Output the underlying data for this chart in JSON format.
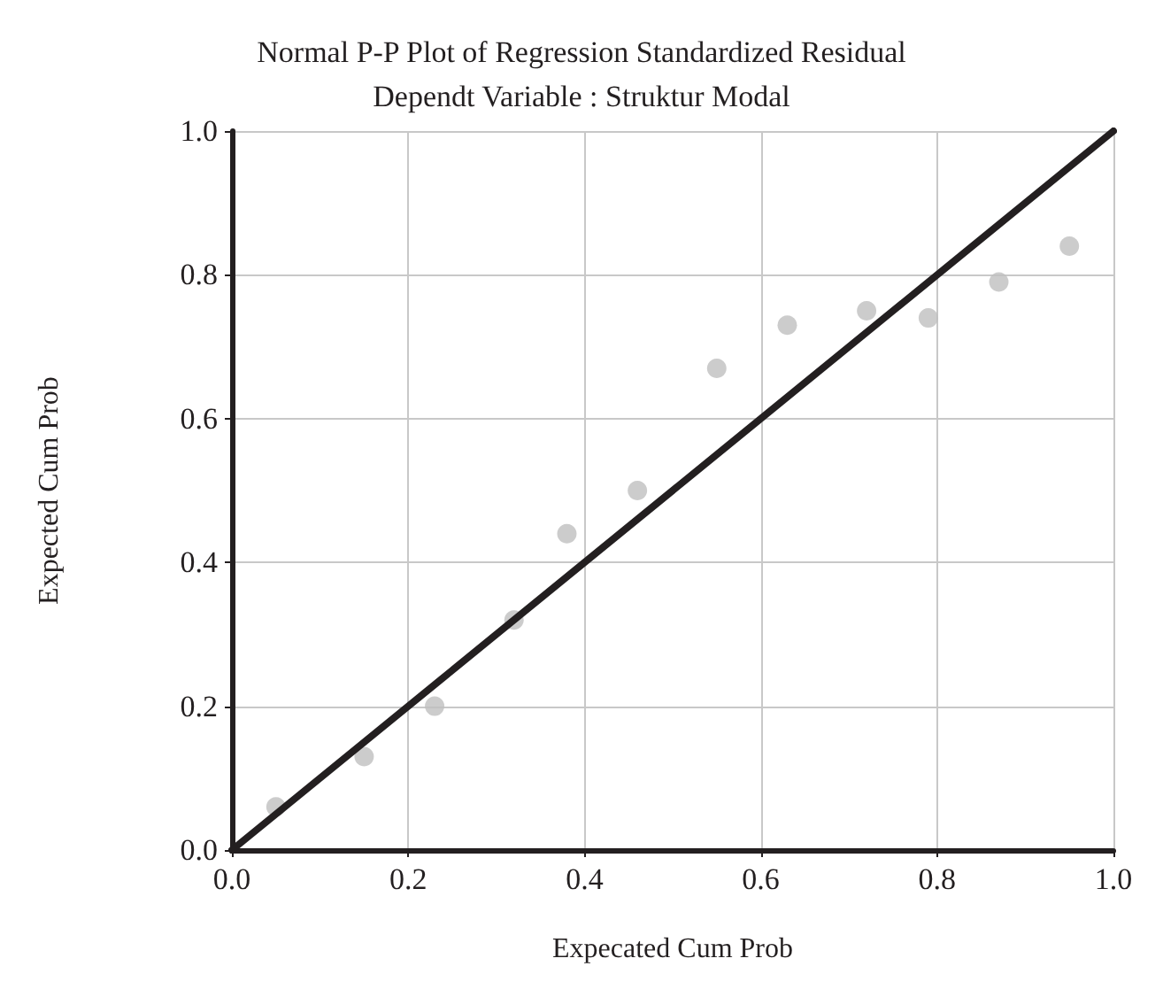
{
  "chart_data": {
    "type": "scatter",
    "title": "Normal P-P Plot of Regression Standardized Residual",
    "subtitle": "Dependt Variable : Struktur Modal",
    "xlabel": "Expecated Cum Prob",
    "ylabel": "Expected Cum Prob",
    "xlim": [
      0,
      1
    ],
    "ylim": [
      0,
      1
    ],
    "xticks": [
      {
        "value": 0,
        "label": "0.0"
      },
      0.2,
      0.4,
      0.6,
      0.8,
      {
        "value": 1,
        "label": "1.0"
      }
    ],
    "yticks": [
      {
        "value": 0,
        "label": "0.0"
      },
      0.2,
      0.4,
      0.6,
      0.8,
      {
        "value": 1,
        "label": "1.0"
      }
    ],
    "grid": true,
    "marker": "circle",
    "series": [
      {
        "type": "scatter",
        "color": "#bfbfbf",
        "x": [
          0.05,
          0.15,
          0.23,
          0.32,
          0.38,
          0.46,
          0.55,
          0.63,
          0.72,
          0.79,
          0.87,
          0.95
        ],
        "values": [
          0.06,
          0.13,
          0.2,
          0.32,
          0.44,
          0.5,
          0.67,
          0.73,
          0.75,
          0.74,
          0.79,
          0.84
        ]
      },
      {
        "type": "line",
        "color": "#231f20",
        "marker": "none",
        "line_style": "solid",
        "x": [
          0,
          1
        ],
        "values": [
          0,
          1
        ]
      }
    ]
  }
}
